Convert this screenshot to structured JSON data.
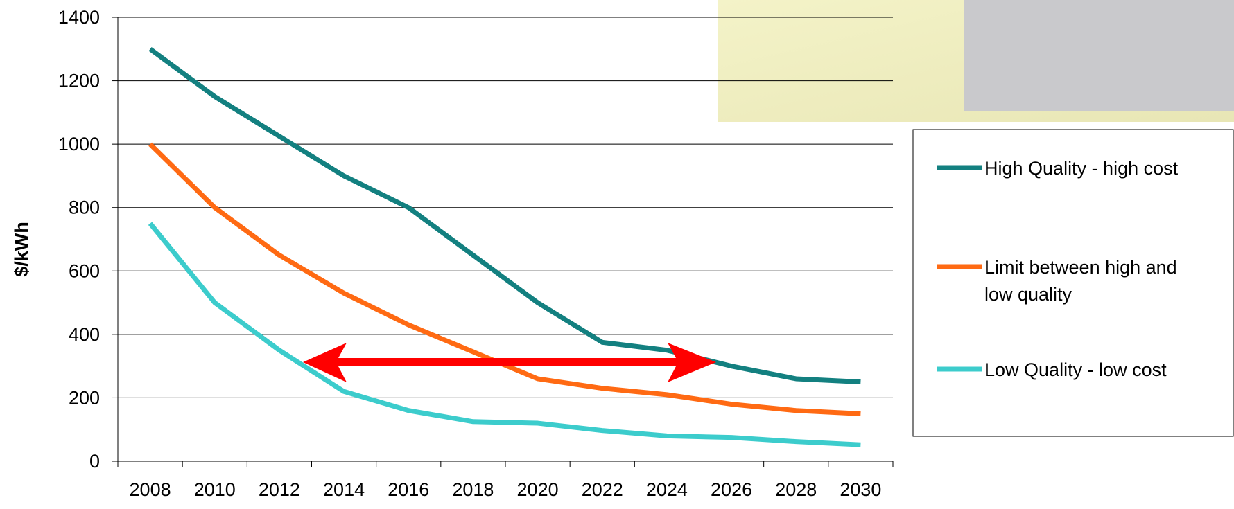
{
  "chart_data": {
    "type": "line",
    "y_label": "$/kWh",
    "categories": [
      "2008",
      "2010",
      "2012",
      "2014",
      "2016",
      "2018",
      "2020",
      "2022",
      "2024",
      "2026",
      "2028",
      "2030"
    ],
    "series": [
      {
        "name": "High Quality - high cost",
        "color": "#138080",
        "values": [
          1300,
          1150,
          1025,
          900,
          800,
          650,
          500,
          375,
          350,
          300,
          260,
          250
        ]
      },
      {
        "name": "Limit between high and low quality",
        "color": "#ff6a13",
        "values": [
          1000,
          800,
          650,
          530,
          430,
          345,
          260,
          230,
          210,
          180,
          160,
          150
        ]
      },
      {
        "name": "Low Quality - low cost",
        "color": "#3ccccc",
        "values": [
          750,
          500,
          350,
          220,
          160,
          125,
          120,
          97,
          80,
          75,
          62,
          52
        ]
      }
    ],
    "ylim": [
      0,
      1400
    ],
    "yticks": [
      0,
      200,
      400,
      600,
      800,
      1000,
      1200,
      1400
    ],
    "grid": true
  }
}
